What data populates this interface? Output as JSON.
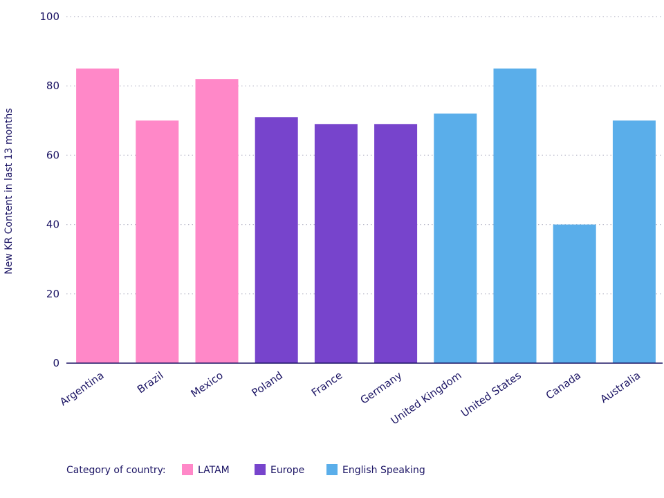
{
  "chart_data": {
    "type": "bar",
    "ylabel": "New KR Content in last 13 months",
    "xlabel": "",
    "ylim": [
      0,
      100
    ],
    "yticks": [
      0,
      20,
      40,
      60,
      80,
      100
    ],
    "grid": "horizontal-dotted",
    "categories": [
      "Argentina",
      "Brazil",
      "Mexico",
      "Poland",
      "France",
      "Germany",
      "United Kingdom",
      "United States",
      "Canada",
      "Australia"
    ],
    "values": [
      85,
      70,
      82,
      71,
      69,
      69,
      72,
      85,
      40,
      70
    ],
    "bar_groups": [
      "LATAM",
      "LATAM",
      "LATAM",
      "Europe",
      "Europe",
      "Europe",
      "English Speaking",
      "English Speaking",
      "English Speaking",
      "English Speaking"
    ],
    "legend": {
      "title": "Category of country:",
      "placement": "bottom-left",
      "entries": [
        {
          "name": "LATAM",
          "color": "#ff88c8"
        },
        {
          "name": "Europe",
          "color": "#7744cc"
        },
        {
          "name": "English Speaking",
          "color": "#5aaeea"
        }
      ]
    },
    "colors": {
      "text": "#1b1464",
      "grid": "#b8b8c8",
      "axis": "#1b1464"
    }
  }
}
